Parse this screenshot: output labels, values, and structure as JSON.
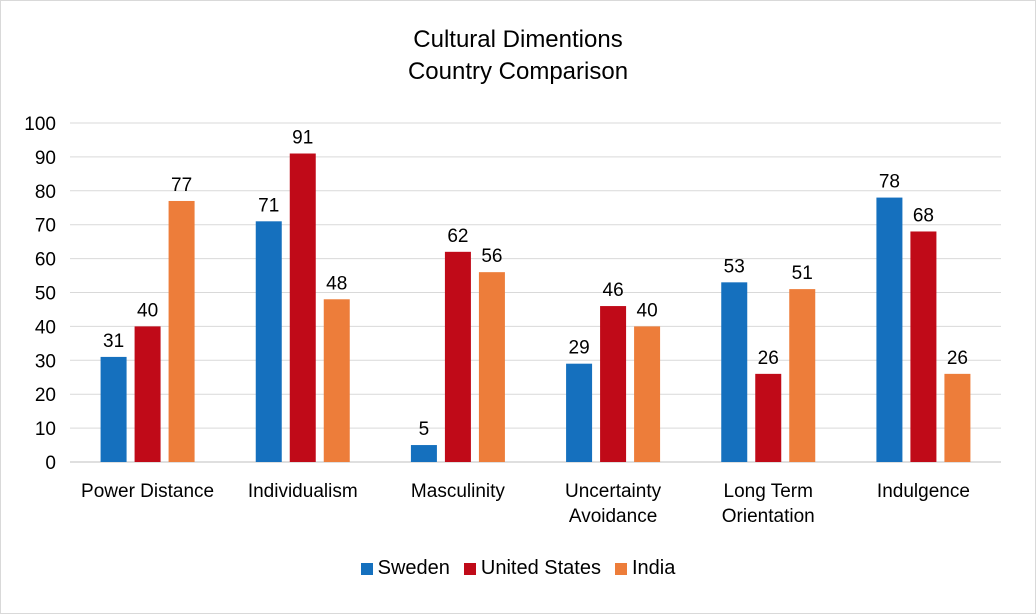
{
  "chart_data": {
    "type": "bar",
    "title_lines": [
      "Cultural Dimentions",
      "Country Comparison"
    ],
    "categories": [
      [
        "Power Distance"
      ],
      [
        "Individualism"
      ],
      [
        "Masculinity"
      ],
      [
        "Uncertainty",
        "Avoidance"
      ],
      [
        "Long Term",
        "Orientation"
      ],
      [
        "Indulgence"
      ]
    ],
    "series": [
      {
        "name": "Sweden",
        "color": "#1570be",
        "values": [
          31,
          71,
          5,
          29,
          53,
          78
        ]
      },
      {
        "name": "United States",
        "color": "#c00a18",
        "values": [
          40,
          91,
          62,
          46,
          26,
          68
        ]
      },
      {
        "name": "India",
        "color": "#ed7d3a",
        "values": [
          77,
          48,
          56,
          40,
          51,
          26
        ]
      }
    ],
    "ylim": [
      0,
      100
    ],
    "yticks": [
      0,
      10,
      20,
      30,
      40,
      50,
      60,
      70,
      80,
      90,
      100
    ],
    "grid": true,
    "legend": "bottom",
    "data_labels": true
  }
}
